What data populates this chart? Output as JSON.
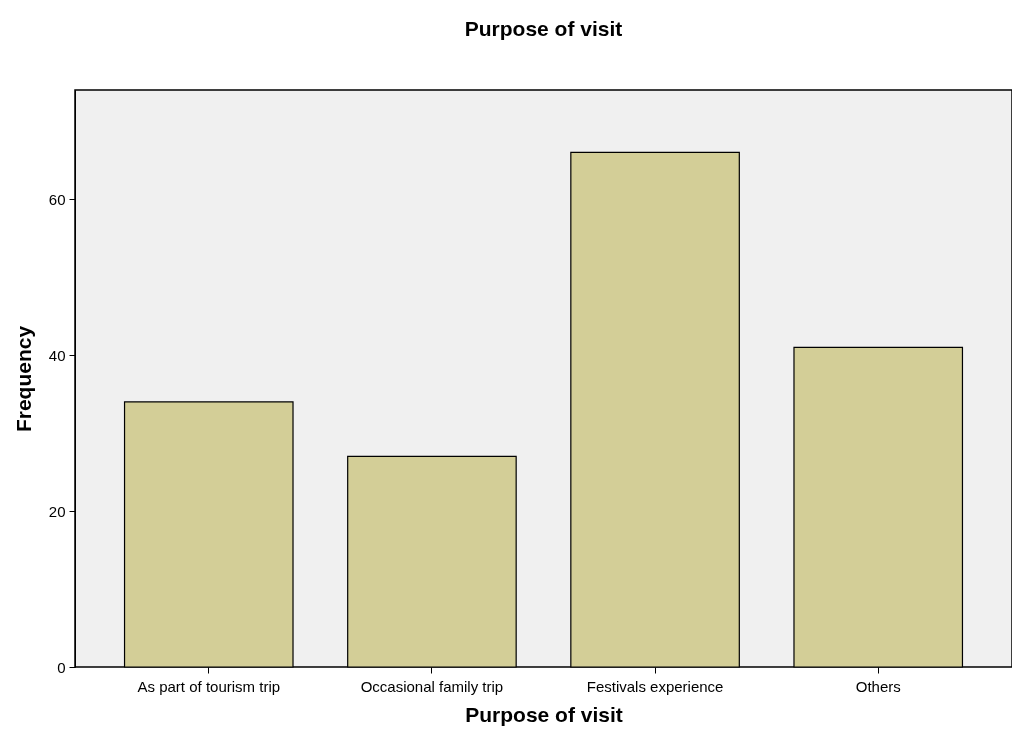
{
  "chart_data": {
    "type": "bar",
    "title": "Purpose of visit",
    "xlabel": "Purpose of visit",
    "ylabel": "Frequency",
    "categories": [
      "As part of tourism trip",
      "Occasional family trip",
      "Festivals experience",
      "Others"
    ],
    "values": [
      34,
      27,
      66,
      41
    ],
    "color": "#d3ce97",
    "ylim": [
      0,
      74
    ],
    "yticks": [
      0,
      20,
      40,
      60
    ],
    "grid": false
  }
}
